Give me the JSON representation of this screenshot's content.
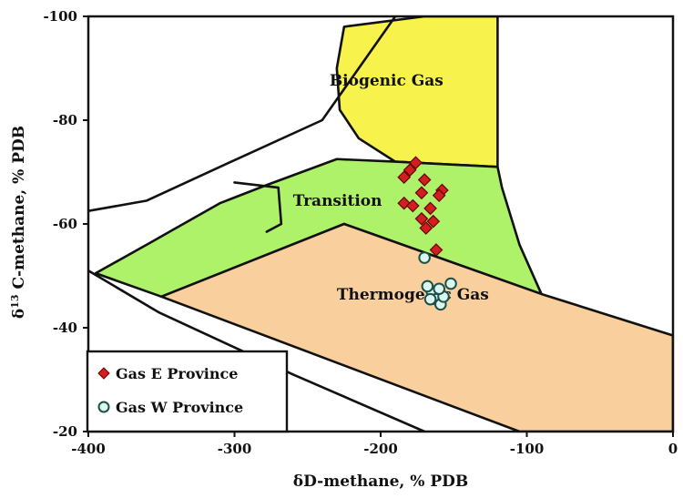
{
  "chart_data": {
    "type": "scatter",
    "xlabel": "δD-methane, % PDB",
    "ylabel_main": "δ",
    "ylabel_sup": "13",
    "ylabel_rest": " C-methane, % PDB",
    "xlim": [
      -400,
      0
    ],
    "ylim": [
      -100,
      -20
    ],
    "x_reversed_display": false,
    "y_top_is": -100,
    "xticks": [
      -400,
      -300,
      -200,
      -100,
      0
    ],
    "xtick_labels": [
      "-400",
      "-300",
      "-200",
      "-100",
      "0"
    ],
    "yticks": [
      -100,
      -80,
      -60,
      -40,
      -20
    ],
    "ytick_labels": [
      "-100",
      "-80",
      "-60",
      "-40",
      "-20"
    ],
    "grid": false,
    "legend_position": "bottom-left",
    "regions": [
      {
        "name": "Biogenic Gas",
        "label": "Biogenic Gas",
        "color": "#f7f24c",
        "label_at": [
          -235,
          -87.5
        ],
        "polygon": [
          [
            -170,
            -100
          ],
          [
            -120,
            -100
          ],
          [
            -120,
            -71
          ],
          [
            -190,
            -72
          ],
          [
            -215,
            -76.5
          ],
          [
            -228,
            -82
          ],
          [
            -230,
            -90
          ],
          [
            -225,
            -98
          ]
        ]
      },
      {
        "name": "Transition",
        "label": "Transition",
        "color": "#aef26a",
        "label_at": [
          -260,
          -64.3
        ],
        "polygon": [
          [
            -395,
            -50.5
          ],
          [
            -357,
            -56.5
          ],
          [
            -310,
            -64
          ],
          [
            -278,
            -67.5
          ],
          [
            -230,
            -72.5
          ],
          [
            -190,
            -72
          ],
          [
            -120,
            -71
          ],
          [
            -117,
            -67
          ],
          [
            -105,
            -56
          ],
          [
            -90,
            -46.5
          ],
          [
            -225,
            -60
          ],
          [
            -350,
            -46
          ]
        ]
      },
      {
        "name": "Thermogenic Gas",
        "label": "Thermogenic Gas",
        "color": "#f8cf9d",
        "label_at": [
          -230,
          -46.2
        ],
        "polygon": [
          [
            -350,
            -46
          ],
          [
            -225,
            -60
          ],
          [
            -90,
            -46.5
          ],
          [
            0,
            -38.5
          ],
          [
            0,
            -20
          ],
          [
            -105,
            -20
          ]
        ]
      }
    ],
    "outlines": [
      {
        "name": "Upper boundary",
        "points": [
          [
            -400,
            -62.5
          ],
          [
            -360,
            -64.5
          ],
          [
            -310,
            -71
          ],
          [
            -240,
            -80
          ],
          [
            -210,
            -92
          ],
          [
            -190,
            -100
          ]
        ]
      },
      {
        "name": "Lower boundary",
        "points": [
          [
            -400,
            -51
          ],
          [
            -352,
            -43
          ],
          [
            -260,
            -31
          ],
          [
            -170,
            -20
          ]
        ]
      },
      {
        "name": "Transition notch",
        "points": [
          [
            -300,
            -68
          ],
          [
            -270,
            -67
          ],
          [
            -268,
            -60
          ],
          [
            -278,
            -58.5
          ]
        ]
      }
    ],
    "series": [
      {
        "name": "Gas E Province",
        "marker": "diamond",
        "color": "#d11f1f",
        "edge": "#6a0000",
        "points": [
          [
            -180,
            -70.4
          ],
          [
            -176,
            -71.8
          ],
          [
            -170,
            -68.5
          ],
          [
            -172,
            -66.0
          ],
          [
            -166,
            -63.0
          ],
          [
            -164,
            -60.5
          ],
          [
            -158,
            -66.5
          ],
          [
            -160,
            -65.5
          ],
          [
            -184,
            -64.0
          ],
          [
            -178,
            -63.5
          ],
          [
            -172,
            -61.0
          ],
          [
            -169,
            -59.2
          ],
          [
            -162,
            -55.0
          ],
          [
            -184,
            -69.0
          ]
        ]
      },
      {
        "name": "Gas W Province",
        "marker": "circle",
        "color": "#d9f7ef",
        "edge": "#1f4f4a",
        "points": [
          [
            -170,
            -53.5
          ],
          [
            -165,
            -47.0
          ],
          [
            -162,
            -45.5
          ],
          [
            -159,
            -44.5
          ],
          [
            -157,
            -46.0
          ],
          [
            -152,
            -48.5
          ],
          [
            -160,
            -47.5
          ],
          [
            -166,
            -45.5
          ],
          [
            -168,
            -48.0
          ]
        ]
      }
    ],
    "legend": [
      {
        "label": "Gas E Province",
        "marker": "diamond",
        "color": "#d11f1f"
      },
      {
        "label": "Gas W Province",
        "marker": "circle",
        "color": "#d9f7ef"
      }
    ]
  }
}
